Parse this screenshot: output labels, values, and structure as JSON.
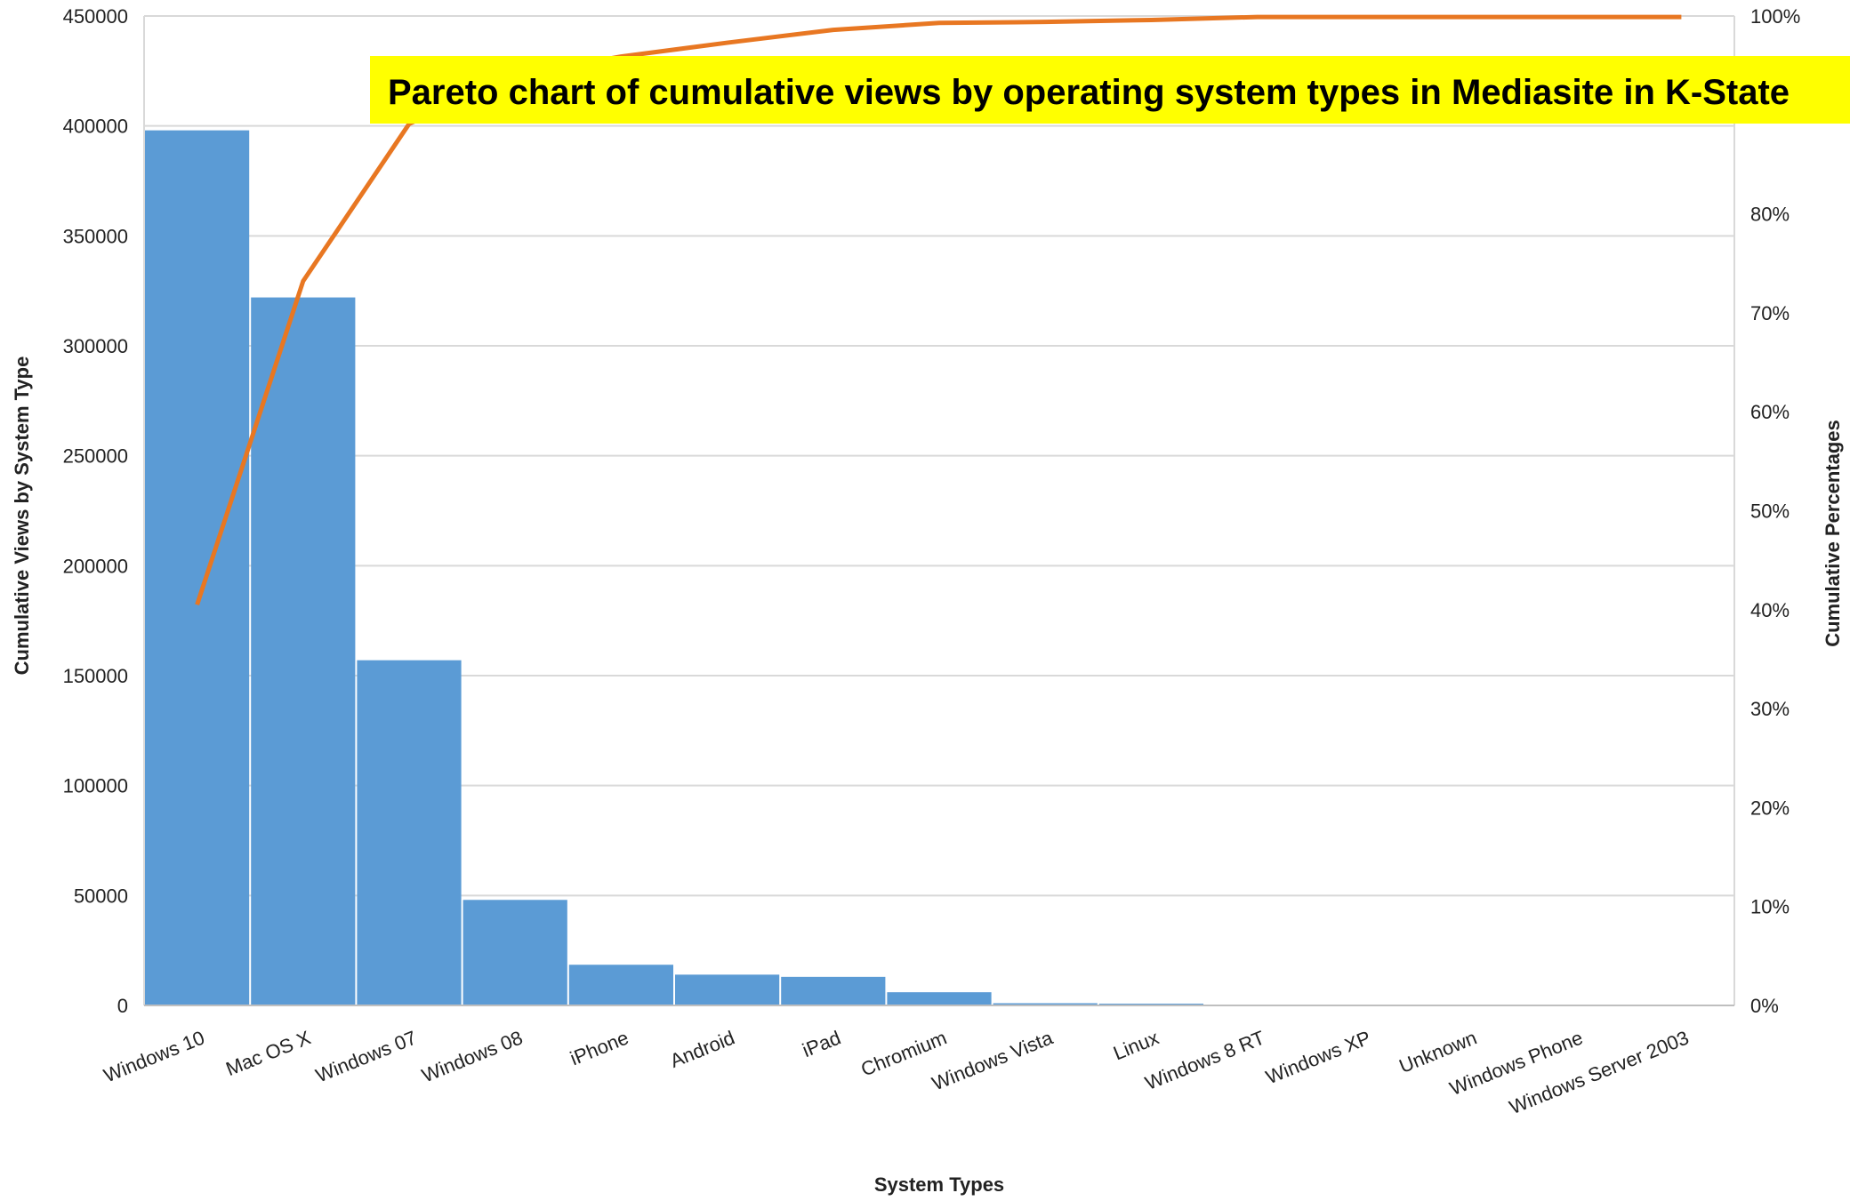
{
  "chart_data": {
    "type": "bar",
    "title": "Pareto chart of cumulative views by operating system types in Mediasite in K-State",
    "xlabel": "System Types",
    "ylabel": "Cumulative Views by System Type",
    "y2label": "Cumulative Percentages",
    "categories": [
      "Windows 10",
      "Mac OS X",
      "Windows 07",
      "Windows 08",
      "iPhone",
      "Android",
      "iPad",
      "Chromium",
      "Windows Vista",
      "Linux",
      "Windows 8 RT",
      "Windows XP",
      "Unknown",
      "Windows Phone",
      "Windows Server 2003"
    ],
    "ylim": [
      0,
      450000
    ],
    "y2lim": [
      0,
      100
    ],
    "yticks": [
      "0",
      "50000",
      "100000",
      "150000",
      "200000",
      "250000",
      "300000",
      "350000",
      "400000",
      "450000"
    ],
    "y2ticks": [
      "0%",
      "10%",
      "20%",
      "30%",
      "40%",
      "50%",
      "60%",
      "70%",
      "80%",
      "100%"
    ],
    "y2tick_values": [
      0,
      10,
      20,
      30,
      40,
      50,
      60,
      70,
      80,
      100
    ],
    "grid": true,
    "series": [
      {
        "values": [
          398000,
          322000,
          157000,
          48000,
          18500,
          14000,
          13000,
          6000,
          1000,
          800,
          100,
          50,
          30,
          20,
          10
        ],
        "color": "#5b9bd5"
      },
      {
        "values": [
          40.5,
          73.2,
          89.1,
          94.0,
          95.9,
          97.3,
          98.6,
          99.3,
          99.4,
          99.6,
          99.9,
          99.9,
          99.9,
          99.9,
          99.9
        ],
        "color": "#e87722",
        "axis": "right"
      }
    ]
  }
}
